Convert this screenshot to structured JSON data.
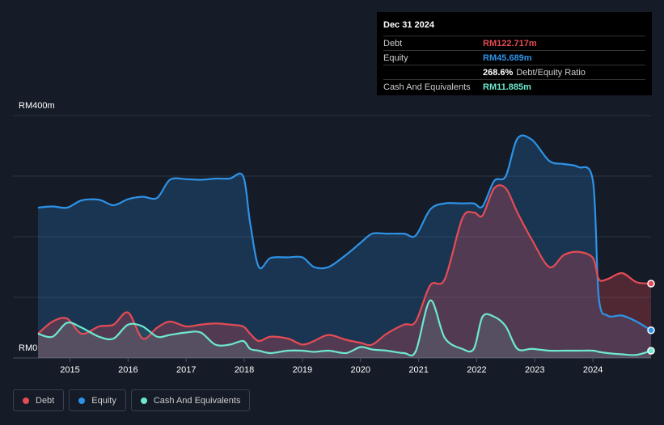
{
  "tooltip": {
    "date": "Dec 31 2024",
    "rows": [
      {
        "label": "Debt",
        "value": "RM122.717m",
        "color": "#e64b55"
      },
      {
        "label": "Equity",
        "value": "RM45.689m",
        "color": "#2e93e8"
      },
      {
        "label": "",
        "value": "268.6%",
        "suffix": "Debt/Equity Ratio",
        "color": "#ffffff"
      },
      {
        "label": "Cash And Equivalents",
        "value": "RM11.885m",
        "color": "#6ee8d0"
      }
    ]
  },
  "legend": [
    {
      "label": "Debt",
      "color": "#e64b55"
    },
    {
      "label": "Equity",
      "color": "#2e93e8"
    },
    {
      "label": "Cash And Equivalents",
      "color": "#6ee8d0"
    }
  ],
  "chart_data": {
    "type": "area",
    "y_unit": "RM m",
    "ylim": [
      0,
      400
    ],
    "xlim": [
      2014.45,
      2025.0
    ],
    "y_ticks": [
      {
        "value": 400,
        "label": "RM400m"
      },
      {
        "value": 0,
        "label": "RM0"
      }
    ],
    "x_ticks": [
      {
        "value": 2015,
        "label": "2015"
      },
      {
        "value": 2016,
        "label": "2016"
      },
      {
        "value": 2017,
        "label": "2017"
      },
      {
        "value": 2018,
        "label": "2018"
      },
      {
        "value": 2019,
        "label": "2019"
      },
      {
        "value": 2020,
        "label": "2020"
      },
      {
        "value": 2021,
        "label": "2021"
      },
      {
        "value": 2022,
        "label": "2022"
      },
      {
        "value": 2023,
        "label": "2023"
      },
      {
        "value": 2024,
        "label": "2024"
      }
    ],
    "grid": true,
    "series": [
      {
        "name": "Equity",
        "color": "#2e93e8",
        "x": [
          2014.45,
          2014.7,
          2014.95,
          2015.2,
          2015.5,
          2015.75,
          2016.0,
          2016.25,
          2016.5,
          2016.72,
          2017.0,
          2017.25,
          2017.5,
          2017.75,
          2017.98,
          2018.1,
          2018.25,
          2018.45,
          2018.75,
          2019.0,
          2019.2,
          2019.45,
          2019.75,
          2020.0,
          2020.2,
          2020.45,
          2020.75,
          2020.95,
          2021.2,
          2021.45,
          2021.75,
          2021.95,
          2022.1,
          2022.3,
          2022.5,
          2022.7,
          2022.95,
          2023.25,
          2023.5,
          2023.75,
          2024.0,
          2024.1,
          2024.25,
          2024.5,
          2024.75,
          2025.0
        ],
        "y": [
          248,
          250,
          248,
          260,
          261,
          252,
          262,
          266,
          264,
          294,
          295,
          294,
          296,
          296,
          300,
          223,
          150,
          165,
          166,
          166,
          150,
          150,
          170,
          190,
          205,
          205,
          205,
          202,
          245,
          255,
          255,
          255,
          250,
          292,
          300,
          362,
          360,
          325,
          320,
          315,
          292,
          100,
          70,
          70,
          60,
          45.689
        ]
      },
      {
        "name": "Debt",
        "color": "#e64b55",
        "x": [
          2014.45,
          2014.7,
          2014.95,
          2015.2,
          2015.5,
          2015.75,
          2016.0,
          2016.25,
          2016.5,
          2016.72,
          2017.0,
          2017.25,
          2017.5,
          2017.75,
          2017.98,
          2018.1,
          2018.25,
          2018.45,
          2018.75,
          2019.0,
          2019.2,
          2019.45,
          2019.75,
          2020.0,
          2020.2,
          2020.45,
          2020.75,
          2020.95,
          2021.2,
          2021.45,
          2021.75,
          2021.95,
          2022.1,
          2022.3,
          2022.5,
          2022.7,
          2022.95,
          2023.25,
          2023.5,
          2023.75,
          2024.0,
          2024.1,
          2024.25,
          2024.5,
          2024.75,
          2025.0
        ],
        "y": [
          40,
          60,
          65,
          40,
          52,
          55,
          75,
          32,
          50,
          60,
          52,
          55,
          57,
          55,
          52,
          40,
          28,
          35,
          32,
          22,
          28,
          38,
          30,
          25,
          22,
          40,
          55,
          60,
          120,
          130,
          230,
          240,
          235,
          280,
          280,
          240,
          195,
          150,
          170,
          175,
          165,
          130,
          130,
          140,
          125,
          122.717
        ]
      },
      {
        "name": "Cash And Equivalents",
        "color": "#6ee8d0",
        "x": [
          2014.45,
          2014.7,
          2014.95,
          2015.2,
          2015.5,
          2015.75,
          2016.0,
          2016.25,
          2016.5,
          2016.72,
          2017.0,
          2017.25,
          2017.5,
          2017.75,
          2017.98,
          2018.1,
          2018.25,
          2018.45,
          2018.75,
          2019.0,
          2019.2,
          2019.45,
          2019.75,
          2020.0,
          2020.2,
          2020.45,
          2020.75,
          2020.95,
          2021.2,
          2021.45,
          2021.75,
          2021.95,
          2022.1,
          2022.3,
          2022.5,
          2022.7,
          2022.95,
          2023.25,
          2023.5,
          2023.75,
          2024.0,
          2024.1,
          2024.25,
          2024.5,
          2024.75,
          2025.0
        ],
        "y": [
          40,
          35,
          58,
          50,
          35,
          32,
          55,
          52,
          35,
          38,
          42,
          42,
          22,
          22,
          28,
          15,
          12,
          8,
          12,
          12,
          10,
          12,
          8,
          18,
          14,
          12,
          8,
          11,
          95,
          33,
          15,
          15,
          68,
          68,
          52,
          15,
          15,
          12,
          12,
          12,
          12,
          10,
          8,
          6,
          5,
          11.885
        ]
      }
    ]
  }
}
